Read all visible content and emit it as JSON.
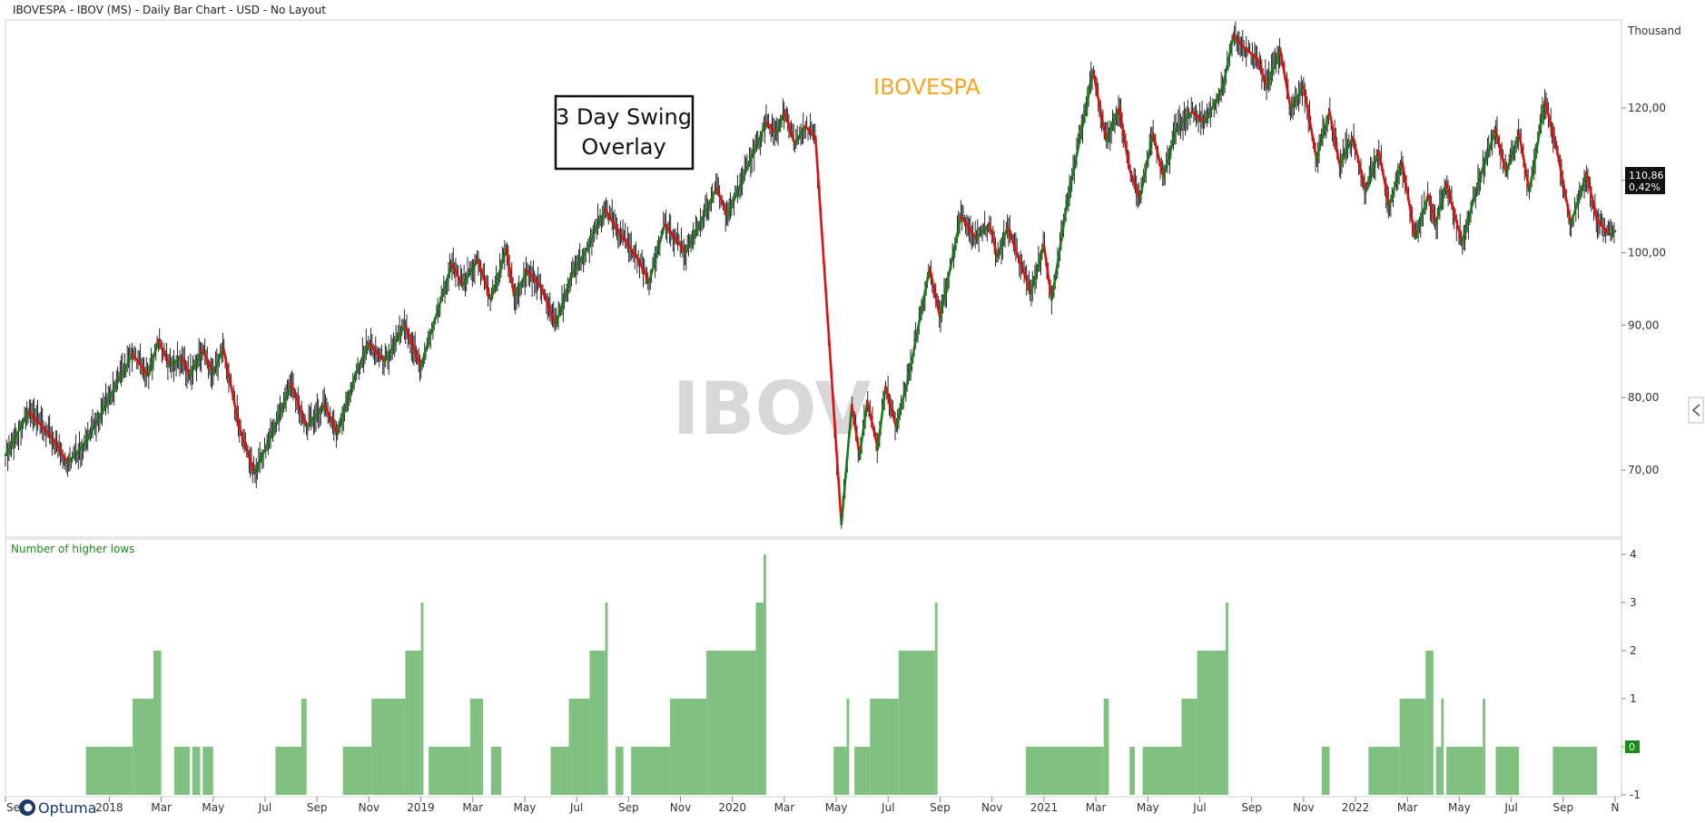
{
  "window": {
    "title": "IBOVESPA - IBOV (MS) - Daily Bar Chart - USD - No Layout"
  },
  "brand": {
    "name": "Optuma",
    "icon": "optuma-logo-icon"
  },
  "colors": {
    "up_swing": "#1a7a1a",
    "down_swing": "#e01010",
    "bars": "#111111",
    "histogram": "#80c080",
    "series_label": "#f5a623",
    "watermark": "#d8d8d8"
  },
  "chart_data": [
    {
      "type": "line",
      "title": "IBOVESPA",
      "watermark": "IBOV",
      "annotation": "3 Day Swing Overlay",
      "annotation_lines": [
        "3 Day Swing",
        "Overlay"
      ],
      "ylabel": "Thousand",
      "ylim": [
        61,
        128
      ],
      "yticks": [
        70,
        80,
        90,
        100,
        110,
        120
      ],
      "ytick_labels": [
        "70,00",
        "80,00",
        "90,00",
        "100,00",
        "110,00",
        "120,00"
      ],
      "last_value": "110,86",
      "last_change": "0,42%",
      "x_tick_labels": [
        "Se",
        "2018",
        "Mar",
        "May",
        "Jul",
        "Sep",
        "Nov",
        "2019",
        "Mar",
        "May",
        "Jul",
        "Sep",
        "Nov",
        "2020",
        "Mar",
        "May",
        "Jul",
        "Sep",
        "Nov",
        "2021",
        "Mar",
        "May",
        "Jul",
        "Sep",
        "Nov",
        "2022",
        "Mar",
        "May",
        "Jul",
        "Sep",
        "N"
      ],
      "x_tick_months": [
        0,
        4,
        6,
        8,
        10,
        12,
        14,
        16,
        18,
        20,
        22,
        24,
        26,
        28,
        30,
        32,
        34,
        36,
        38,
        40,
        42,
        44,
        46,
        48,
        50,
        52,
        54,
        56,
        58,
        60,
        62
      ],
      "xlim": [
        0,
        62
      ],
      "x_unit": "months since Sep 2017",
      "swing_points": [
        [
          0.0,
          72.0
        ],
        [
          0.9,
          78.0
        ],
        [
          1.8,
          74.5
        ],
        [
          2.4,
          71.0
        ],
        [
          3.1,
          73.8
        ],
        [
          4.0,
          80.0
        ],
        [
          4.9,
          86.0
        ],
        [
          5.5,
          83.0
        ],
        [
          5.9,
          88.0
        ],
        [
          6.3,
          84.5
        ],
        [
          6.8,
          85.5
        ],
        [
          7.1,
          83.0
        ],
        [
          7.6,
          86.5
        ],
        [
          8.0,
          83.5
        ],
        [
          8.4,
          86.8
        ],
        [
          9.0,
          76.0
        ],
        [
          9.6,
          69.5
        ],
        [
          10.6,
          78.0
        ],
        [
          11.0,
          82.0
        ],
        [
          11.6,
          76.0
        ],
        [
          12.3,
          79.0
        ],
        [
          12.8,
          75.0
        ],
        [
          13.5,
          83.5
        ],
        [
          14.0,
          87.5
        ],
        [
          14.6,
          85.0
        ],
        [
          15.4,
          90.0
        ],
        [
          16.0,
          84.3
        ],
        [
          17.2,
          98.5
        ],
        [
          17.6,
          95.5
        ],
        [
          18.2,
          99.0
        ],
        [
          18.7,
          93.5
        ],
        [
          19.3,
          100.5
        ],
        [
          19.6,
          94.0
        ],
        [
          20.1,
          97.5
        ],
        [
          20.6,
          95.5
        ],
        [
          21.2,
          90.0
        ],
        [
          21.8,
          97.0
        ],
        [
          22.4,
          100.5
        ],
        [
          23.1,
          106.0
        ],
        [
          23.6,
          103.0
        ],
        [
          24.3,
          99.5
        ],
        [
          24.8,
          96.0
        ],
        [
          25.4,
          104.0
        ],
        [
          26.2,
          100.0
        ],
        [
          27.4,
          109.0
        ],
        [
          27.8,
          105.0
        ],
        [
          29.3,
          118.0
        ],
        [
          29.7,
          116.5
        ],
        [
          30.0,
          119.5
        ],
        [
          30.4,
          115.0
        ],
        [
          30.8,
          117.5
        ],
        [
          31.2,
          116.0
        ],
        [
          32.2,
          62.5
        ],
        [
          32.6,
          79.0
        ],
        [
          32.9,
          72.0
        ],
        [
          33.2,
          79.5
        ],
        [
          33.6,
          73.0
        ],
        [
          33.9,
          81.5
        ],
        [
          34.3,
          76.0
        ],
        [
          34.8,
          83.0
        ],
        [
          35.6,
          98.0
        ],
        [
          36.0,
          91.0
        ],
        [
          36.8,
          105.0
        ],
        [
          37.4,
          102.0
        ],
        [
          37.9,
          104.0
        ],
        [
          38.2,
          99.5
        ],
        [
          38.6,
          103.5
        ],
        [
          39.5,
          94.5
        ],
        [
          40.0,
          101.0
        ],
        [
          40.3,
          93.5
        ],
        [
          40.9,
          107.0
        ],
        [
          41.9,
          125.0
        ],
        [
          42.4,
          115.5
        ],
        [
          42.9,
          120.0
        ],
        [
          43.3,
          111.5
        ],
        [
          43.7,
          107.5
        ],
        [
          44.2,
          116.5
        ],
        [
          44.6,
          110.5
        ],
        [
          45.1,
          117.0
        ],
        [
          45.7,
          119.5
        ],
        [
          46.2,
          118.0
        ],
        [
          46.9,
          123.0
        ],
        [
          47.3,
          130.0
        ],
        [
          47.8,
          128.0
        ],
        [
          48.2,
          127.0
        ],
        [
          48.6,
          123.0
        ],
        [
          49.1,
          128.0
        ],
        [
          49.5,
          120.0
        ],
        [
          50.0,
          123.0
        ],
        [
          50.5,
          113.0
        ],
        [
          51.0,
          119.5
        ],
        [
          51.4,
          112.0
        ],
        [
          51.9,
          116.0
        ],
        [
          52.4,
          108.5
        ],
        [
          52.9,
          114.0
        ],
        [
          53.3,
          106.5
        ],
        [
          53.8,
          112.5
        ],
        [
          54.3,
          102.0
        ],
        [
          54.8,
          108.0
        ],
        [
          55.1,
          104.0
        ],
        [
          55.5,
          109.5
        ],
        [
          56.1,
          101.5
        ],
        [
          56.8,
          110.5
        ],
        [
          57.4,
          117.0
        ],
        [
          57.8,
          111.0
        ],
        [
          58.3,
          116.5
        ],
        [
          58.7,
          108.5
        ],
        [
          59.3,
          121.0
        ],
        [
          59.8,
          113.5
        ],
        [
          60.3,
          104.0
        ],
        [
          60.9,
          111.0
        ],
        [
          61.3,
          104.5
        ],
        [
          61.8,
          102.5
        ],
        [
          62.0,
          103.0
        ]
      ]
    },
    {
      "type": "bar",
      "title": "Number of higher lows",
      "ylim": [
        -1,
        4
      ],
      "yticks": [
        -1,
        0,
        1,
        2,
        3,
        4
      ],
      "ytick_labels": [
        "-1",
        "0",
        "1",
        "2",
        "3",
        "4"
      ],
      "last_value": "0",
      "x_unit": "months since Sep 2017",
      "segments": [
        [
          3.1,
          4.9,
          0
        ],
        [
          4.9,
          5.7,
          1
        ],
        [
          5.7,
          6.0,
          2
        ],
        [
          6.5,
          6.8,
          0
        ],
        [
          6.8,
          7.1,
          0
        ],
        [
          7.2,
          7.5,
          0
        ],
        [
          7.6,
          8.0,
          0
        ],
        [
          10.4,
          11.4,
          0
        ],
        [
          11.4,
          11.6,
          1
        ],
        [
          13.0,
          14.1,
          0
        ],
        [
          14.1,
          15.4,
          1
        ],
        [
          15.4,
          16.0,
          2
        ],
        [
          16.0,
          16.1,
          3
        ],
        [
          16.3,
          17.9,
          0
        ],
        [
          17.9,
          18.4,
          1
        ],
        [
          18.7,
          19.1,
          0
        ],
        [
          21.0,
          21.7,
          0
        ],
        [
          21.7,
          22.5,
          1
        ],
        [
          22.5,
          23.1,
          2
        ],
        [
          23.1,
          23.2,
          3
        ],
        [
          23.5,
          23.8,
          0
        ],
        [
          24.1,
          25.6,
          0
        ],
        [
          25.6,
          27.0,
          1
        ],
        [
          27.0,
          28.9,
          2
        ],
        [
          28.9,
          29.2,
          3
        ],
        [
          29.2,
          29.3,
          4
        ],
        [
          31.9,
          32.4,
          0
        ],
        [
          32.4,
          32.5,
          1
        ],
        [
          32.7,
          33.3,
          0
        ],
        [
          33.3,
          34.4,
          1
        ],
        [
          34.4,
          35.8,
          2
        ],
        [
          35.8,
          35.9,
          3
        ],
        [
          39.3,
          42.3,
          0
        ],
        [
          42.3,
          42.5,
          1
        ],
        [
          43.3,
          43.5,
          0
        ],
        [
          43.8,
          45.3,
          0
        ],
        [
          45.3,
          45.9,
          1
        ],
        [
          45.9,
          47.0,
          2
        ],
        [
          47.0,
          47.1,
          3
        ],
        [
          50.7,
          51.0,
          0
        ],
        [
          52.5,
          53.7,
          0
        ],
        [
          53.7,
          54.7,
          1
        ],
        [
          54.7,
          55.0,
          2
        ],
        [
          55.1,
          55.3,
          0
        ],
        [
          55.3,
          55.4,
          1
        ],
        [
          55.5,
          56.9,
          0
        ],
        [
          56.9,
          57.0,
          1
        ],
        [
          57.4,
          58.3,
          0
        ],
        [
          59.6,
          61.3,
          0
        ]
      ]
    }
  ]
}
